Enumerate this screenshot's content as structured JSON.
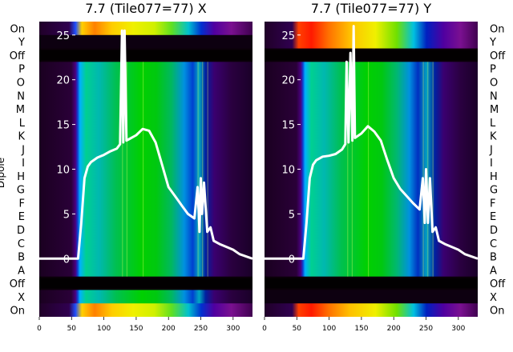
{
  "chart_data": [
    {
      "type": "heatmap",
      "title": "7.7 (Tile077=77) X",
      "ylabel": "Dipole",
      "row_labels": [
        "On",
        "Y",
        "Off",
        "P",
        "O",
        "N",
        "M",
        "L",
        "K",
        "J",
        "I",
        "H",
        "G",
        "F",
        "E",
        "D",
        "C",
        "B",
        "A",
        "Off",
        "X",
        "On"
      ],
      "x_ticks": [
        0,
        50,
        100,
        150,
        200,
        250,
        300
      ],
      "xlim": [
        0,
        330
      ],
      "overlay_yticks": [
        0,
        5,
        10,
        15,
        20,
        25
      ],
      "overlay_ylim": [
        -6.5,
        26.5
      ],
      "overlay": {
        "x": [
          0,
          50,
          60,
          65,
          70,
          75,
          80,
          90,
          100,
          110,
          120,
          125,
          128,
          130,
          132,
          135,
          140,
          150,
          160,
          170,
          180,
          190,
          200,
          210,
          220,
          230,
          240,
          245,
          248,
          250,
          252,
          255,
          260,
          265,
          270,
          280,
          290,
          300,
          310,
          330
        ],
        "y": [
          0,
          0,
          0,
          4,
          9,
          10.3,
          10.8,
          11.3,
          11.6,
          12,
          12.3,
          12.8,
          25.5,
          13,
          25.5,
          13.2,
          13.4,
          13.8,
          14.5,
          14.3,
          13,
          10.5,
          8,
          7,
          6,
          5,
          4.5,
          8,
          3,
          9,
          5,
          8.5,
          3,
          3.5,
          2,
          1.6,
          1.3,
          1,
          0.5,
          0
        ]
      },
      "colors": {
        "overlay": "#ffffff",
        "background": "#000000"
      }
    },
    {
      "type": "heatmap",
      "title": "7.7 (Tile077=77) Y",
      "row_labels": [
        "On",
        "Y",
        "Off",
        "P",
        "O",
        "N",
        "M",
        "L",
        "K",
        "J",
        "I",
        "H",
        "G",
        "F",
        "E",
        "D",
        "C",
        "B",
        "A",
        "Off",
        "X",
        "On"
      ],
      "x_ticks": [
        0,
        50,
        100,
        150,
        200,
        250,
        300
      ],
      "xlim": [
        0,
        330
      ],
      "overlay_yticks": [
        0,
        5,
        10,
        15,
        20,
        25
      ],
      "overlay_ylim": [
        -6.5,
        26.5
      ],
      "overlay": {
        "x": [
          0,
          50,
          60,
          65,
          70,
          75,
          80,
          90,
          100,
          110,
          120,
          125,
          127,
          130,
          133,
          136,
          138,
          140,
          150,
          160,
          170,
          180,
          190,
          200,
          210,
          220,
          230,
          240,
          245,
          248,
          250,
          253,
          256,
          260,
          265,
          270,
          280,
          290,
          300,
          310,
          330
        ],
        "y": [
          0,
          0,
          0,
          4,
          9,
          10.5,
          11,
          11.4,
          11.5,
          11.7,
          12.2,
          12.8,
          22,
          13,
          23,
          13.2,
          26,
          13.5,
          14,
          14.8,
          14.2,
          13.2,
          11,
          9,
          7.8,
          7,
          6.2,
          5.5,
          9,
          4,
          10,
          4,
          9,
          3,
          3.5,
          2,
          1.6,
          1.3,
          1,
          0.5,
          0
        ]
      },
      "colors": {
        "overlay": "#ffffff",
        "background": "#000000"
      }
    }
  ]
}
